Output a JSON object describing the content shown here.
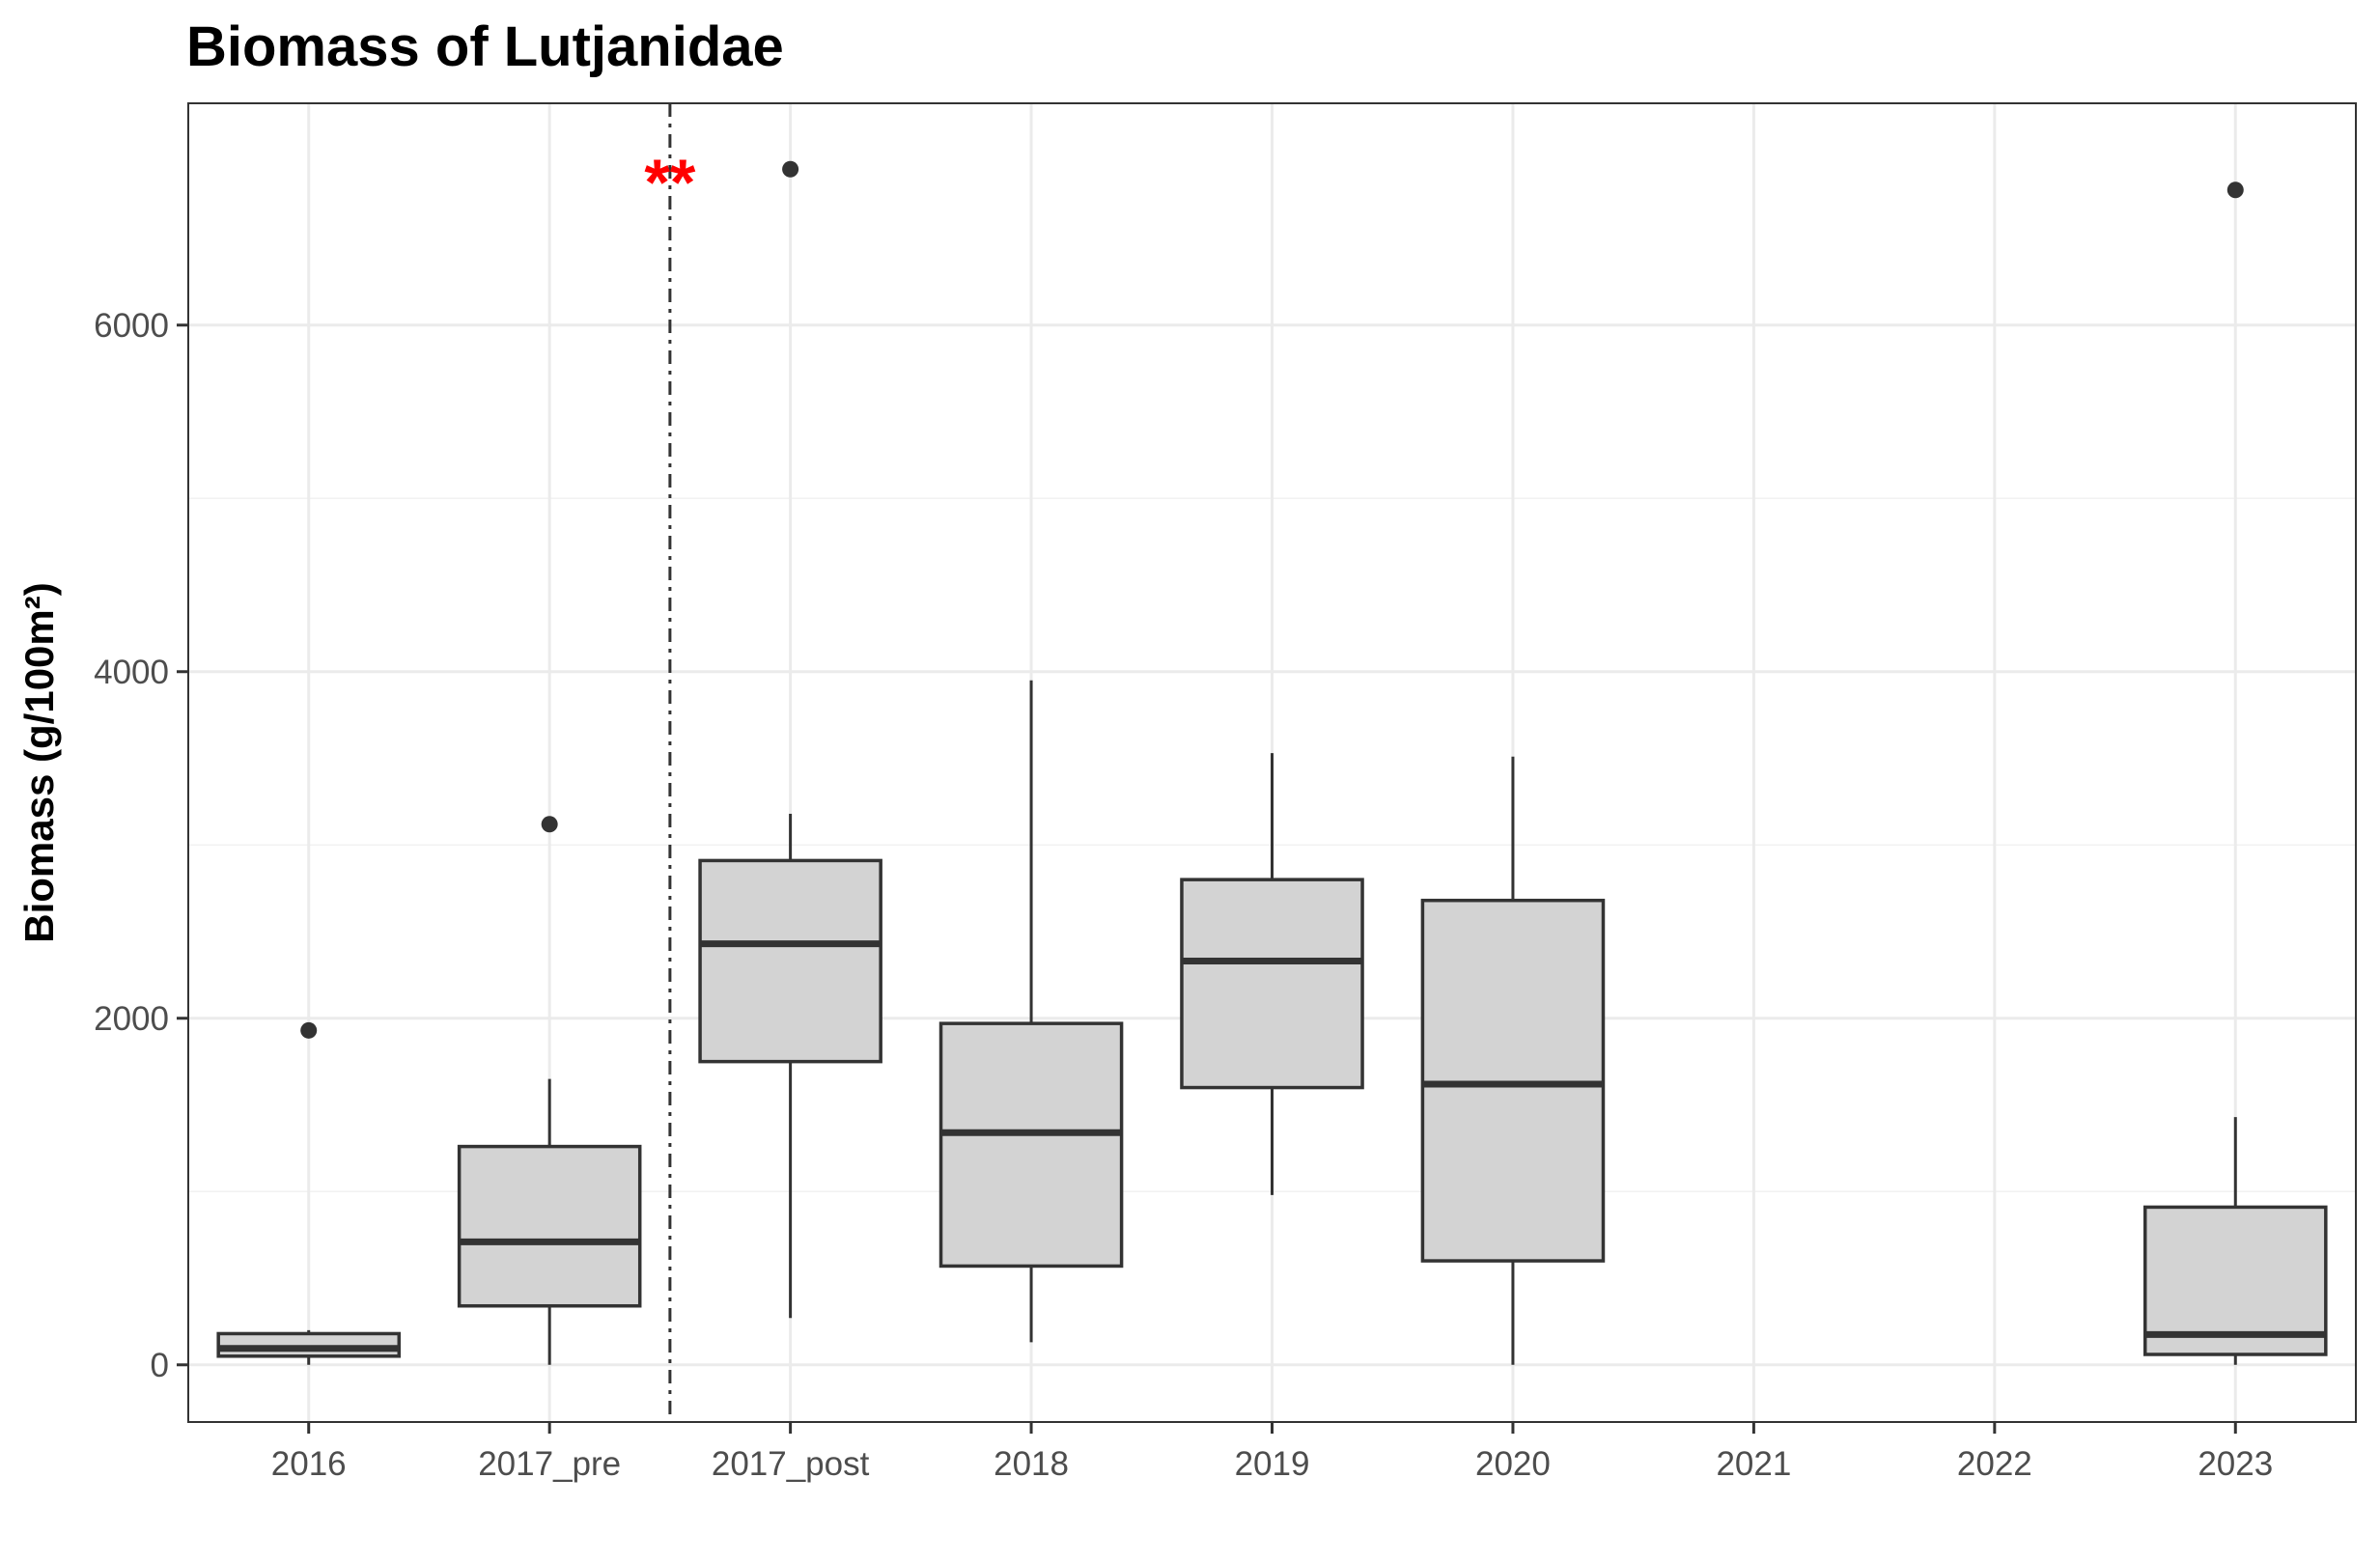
{
  "chart_data": {
    "type": "box",
    "title": "Biomass of Lutjanidae",
    "xlabel": "",
    "ylabel": "Biomass (g/100m²)",
    "ylim": [
      -330,
      7280
    ],
    "yticks": [
      0,
      2000,
      4000,
      6000
    ],
    "grid": true,
    "legend": "none",
    "categories": [
      "2016",
      "2017_pre",
      "2017_post",
      "2018",
      "2019",
      "2020",
      "2021",
      "2022",
      "2023"
    ],
    "boxes": [
      {
        "category": "2016",
        "min": 0,
        "q1": 50,
        "median": 95,
        "q3": 180,
        "max": 200,
        "outliers": [
          1930
        ]
      },
      {
        "category": "2017_pre",
        "min": 0,
        "q1": 340,
        "median": 710,
        "q3": 1260,
        "max": 1650,
        "outliers": [
          3120
        ]
      },
      {
        "category": "2017_post",
        "min": 270,
        "q1": 1750,
        "median": 2430,
        "q3": 2910,
        "max": 3180,
        "outliers": [
          6900
        ]
      },
      {
        "category": "2018",
        "min": 130,
        "q1": 570,
        "median": 1340,
        "q3": 1970,
        "max": 3950,
        "outliers": []
      },
      {
        "category": "2019",
        "min": 980,
        "q1": 1600,
        "median": 2330,
        "q3": 2800,
        "max": 3530,
        "outliers": []
      },
      {
        "category": "2020",
        "min": 0,
        "q1": 600,
        "median": 1620,
        "q3": 2680,
        "max": 3510,
        "outliers": []
      },
      {
        "category": "2021",
        "empty": true
      },
      {
        "category": "2022",
        "empty": true
      },
      {
        "category": "2023",
        "min": 0,
        "q1": 60,
        "median": 175,
        "q3": 910,
        "max": 1430,
        "outliers": [
          6780
        ]
      }
    ],
    "reference_line": {
      "between": [
        "2017_pre",
        "2017_post"
      ],
      "style": "dashed",
      "color": "#333333"
    },
    "annotation": {
      "text": "**",
      "color": "#ff0000",
      "y": 6850
    },
    "colors": {
      "box_fill": "#d3d3d3",
      "box_line": "#333333",
      "grid": "#ebebeb",
      "panel_border": "#333333"
    }
  }
}
